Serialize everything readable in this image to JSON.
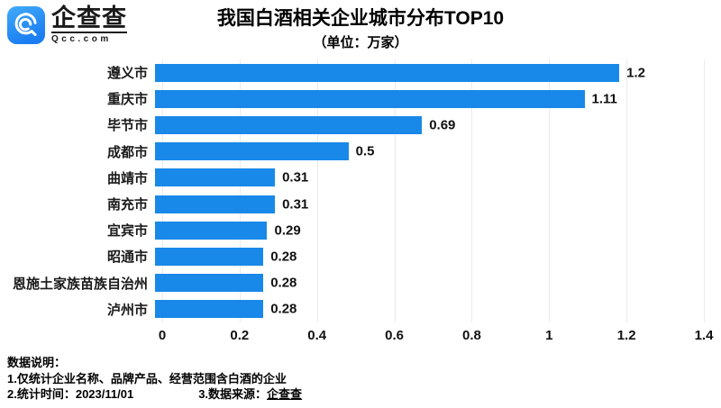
{
  "logo": {
    "brand": "企查查",
    "domain": "Qcc.com",
    "icon_colors": {
      "top": "#41aaf8",
      "bottom": "#1b7df2"
    }
  },
  "header": {
    "title": "我国白酒相关企业城市分布TOP10",
    "subtitle": "（单位：万家）"
  },
  "chart_data": {
    "type": "bar",
    "orientation": "horizontal",
    "title": "我国白酒相关企业城市分布TOP10",
    "unit": "万家",
    "categories": [
      "遵义市",
      "重庆市",
      "毕节市",
      "成都市",
      "曲靖市",
      "南充市",
      "宜宾市",
      "昭通市",
      "恩施土家族苗族自治州",
      "泸州市"
    ],
    "values": [
      1.2,
      1.11,
      0.69,
      0.5,
      0.31,
      0.31,
      0.29,
      0.28,
      0.28,
      0.28
    ],
    "value_labels": [
      "1.2",
      "1.11",
      "0.69",
      "0.5",
      "0.31",
      "0.31",
      "0.29",
      "0.28",
      "0.28",
      "0.28"
    ],
    "xlim": [
      0,
      1.4
    ],
    "x_ticks": [
      "0",
      "0.2",
      "0.4",
      "0.6",
      "0.8",
      "1",
      "1.2",
      "1.4"
    ],
    "bar_color": "#1889e8",
    "grid": true,
    "gridline_color": "#ebebeb",
    "legend": "none"
  },
  "notes": {
    "heading": "数据说明：",
    "line1": "1.仅统计企业名称、品牌产品、经营范围含白酒的企业",
    "line2_left": "2.统计时间：2023/11/01",
    "line2_right_label": "3.数据来源：",
    "line2_right_source": "企查查"
  }
}
